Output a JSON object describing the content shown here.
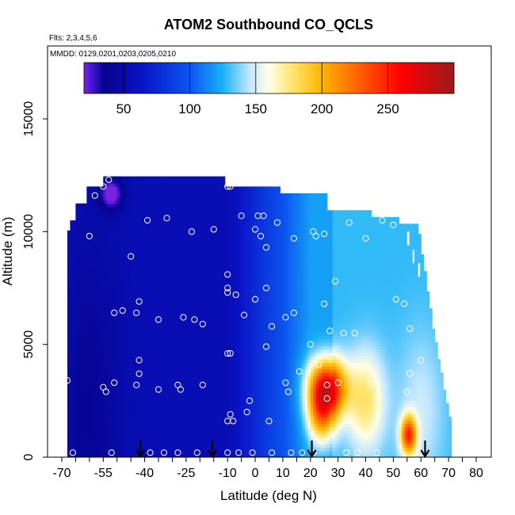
{
  "chart_data": {
    "type": "heatmap",
    "title": "ATOM2 Southbound CO_QCLS",
    "subtitle_lines": [
      "Flts: 2,3,4,5,6",
      "MMDD: 0129,0201,0203,0205,0210"
    ],
    "xlabel": "Latitude (deg N)",
    "ylabel": "Altitude (m)",
    "xlim": [
      -70,
      80
    ],
    "ylim": [
      0,
      17500
    ],
    "x_ticks": [
      -70,
      -55,
      -40,
      -25,
      -10,
      0,
      10,
      20,
      30,
      40,
      50,
      60,
      70,
      80
    ],
    "x_tick_labels": [
      "-70",
      "-55",
      "-40",
      "-25",
      "-10",
      "0",
      "10",
      "20",
      "30",
      "40",
      "50",
      "60",
      "70",
      "80"
    ],
    "x_minor_ticks": [
      -65,
      -60,
      -50,
      -45,
      -35,
      -30,
      -20,
      -15,
      -5,
      5,
      15,
      25,
      35,
      45,
      55,
      65,
      75
    ],
    "y_ticks": [
      0,
      5000,
      10000,
      15000
    ],
    "y_tick_labels": [
      "0",
      "5000",
      "10000",
      "15000"
    ],
    "colorbar": {
      "range": [
        20,
        300
      ],
      "ticks": [
        50,
        100,
        150,
        200,
        250
      ],
      "tick_labels": [
        "50",
        "100",
        "150",
        "200",
        "250"
      ],
      "stops": [
        {
          "v": 20,
          "c": "#7a22e0"
        },
        {
          "v": 27,
          "c": "#3a14d0"
        },
        {
          "v": 35,
          "c": "#05038c"
        },
        {
          "v": 65,
          "c": "#0a14c8"
        },
        {
          "v": 100,
          "c": "#0b55f0"
        },
        {
          "v": 125,
          "c": "#18b2f7"
        },
        {
          "v": 145,
          "c": "#bfe6ff"
        },
        {
          "v": 160,
          "c": "#ffffe6"
        },
        {
          "v": 180,
          "c": "#ffe060"
        },
        {
          "v": 200,
          "c": "#ffb400"
        },
        {
          "v": 230,
          "c": "#ff5a00"
        },
        {
          "v": 260,
          "c": "#ff0000"
        },
        {
          "v": 300,
          "c": "#9a1a1a"
        }
      ]
    },
    "sample_points": [
      [
        -68,
        3400
      ],
      [
        -66,
        200
      ],
      [
        -60,
        9800
      ],
      [
        -58,
        11600
      ],
      [
        -55,
        12000
      ],
      [
        -53,
        12300
      ],
      [
        -55,
        3100
      ],
      [
        -54,
        2900
      ],
      [
        -52,
        200
      ],
      [
        -51,
        3300
      ],
      [
        -51,
        6400
      ],
      [
        -48,
        6500
      ],
      [
        -45,
        8900
      ],
      [
        -43,
        3200
      ],
      [
        -43,
        6400
      ],
      [
        -42,
        3700
      ],
      [
        -42,
        4300
      ],
      [
        -42,
        6900
      ],
      [
        -39,
        10500
      ],
      [
        -38,
        200
      ],
      [
        -35,
        3000
      ],
      [
        -35,
        6100
      ],
      [
        -33,
        200
      ],
      [
        -32,
        10600
      ],
      [
        -28,
        3200
      ],
      [
        -28,
        200
      ],
      [
        -27,
        3000
      ],
      [
        -26,
        6200
      ],
      [
        -23,
        10000
      ],
      [
        -22,
        6100
      ],
      [
        -21,
        200
      ],
      [
        -19,
        3200
      ],
      [
        -19,
        5900
      ],
      [
        -15,
        10100
      ],
      [
        -10,
        12000
      ],
      [
        -10,
        8100
      ],
      [
        -10,
        7500
      ],
      [
        -10,
        7300
      ],
      [
        -10,
        4600
      ],
      [
        -10,
        1600
      ],
      [
        -10,
        200
      ],
      [
        -9,
        12000
      ],
      [
        -9,
        4600
      ],
      [
        -9,
        1900
      ],
      [
        -8,
        1600
      ],
      [
        -7,
        7200
      ],
      [
        -6,
        200
      ],
      [
        -5,
        10700
      ],
      [
        -4,
        6300
      ],
      [
        -3,
        2000
      ],
      [
        -2,
        2500
      ],
      [
        -1,
        200
      ],
      [
        0,
        10100
      ],
      [
        0,
        7000
      ],
      [
        1,
        10700
      ],
      [
        2,
        9800
      ],
      [
        3,
        10700
      ],
      [
        4,
        9300
      ],
      [
        4,
        7500
      ],
      [
        4,
        4900
      ],
      [
        5,
        1600
      ],
      [
        6,
        200
      ],
      [
        6,
        5800
      ],
      [
        8,
        10400
      ],
      [
        11,
        6200
      ],
      [
        11,
        3300
      ],
      [
        12,
        2900
      ],
      [
        13,
        200
      ],
      [
        14,
        9700
      ],
      [
        14,
        6400
      ],
      [
        16,
        3800
      ],
      [
        17,
        200
      ],
      [
        20,
        5000
      ],
      [
        21,
        10000
      ],
      [
        21,
        200
      ],
      [
        22,
        9800
      ],
      [
        23,
        4100
      ],
      [
        25,
        6800
      ],
      [
        25,
        9900
      ],
      [
        26,
        3200
      ],
      [
        26,
        2600
      ],
      [
        27,
        5600
      ],
      [
        29,
        7800
      ],
      [
        30,
        3300
      ],
      [
        32,
        5500
      ],
      [
        33,
        200
      ],
      [
        34,
        10400
      ],
      [
        36,
        5500
      ],
      [
        37,
        200
      ],
      [
        40,
        9700
      ],
      [
        42,
        3300
      ],
      [
        44,
        200
      ],
      [
        46,
        10500
      ],
      [
        50,
        10300
      ],
      [
        51,
        7000
      ],
      [
        54,
        6800
      ],
      [
        55,
        2900
      ],
      [
        56,
        5700
      ],
      [
        56,
        3700
      ],
      [
        60,
        4300
      ],
      [
        60,
        200
      ]
    ],
    "arrows_lat": [
      -41.5,
      -15.5,
      20.5,
      61.5
    ]
  }
}
